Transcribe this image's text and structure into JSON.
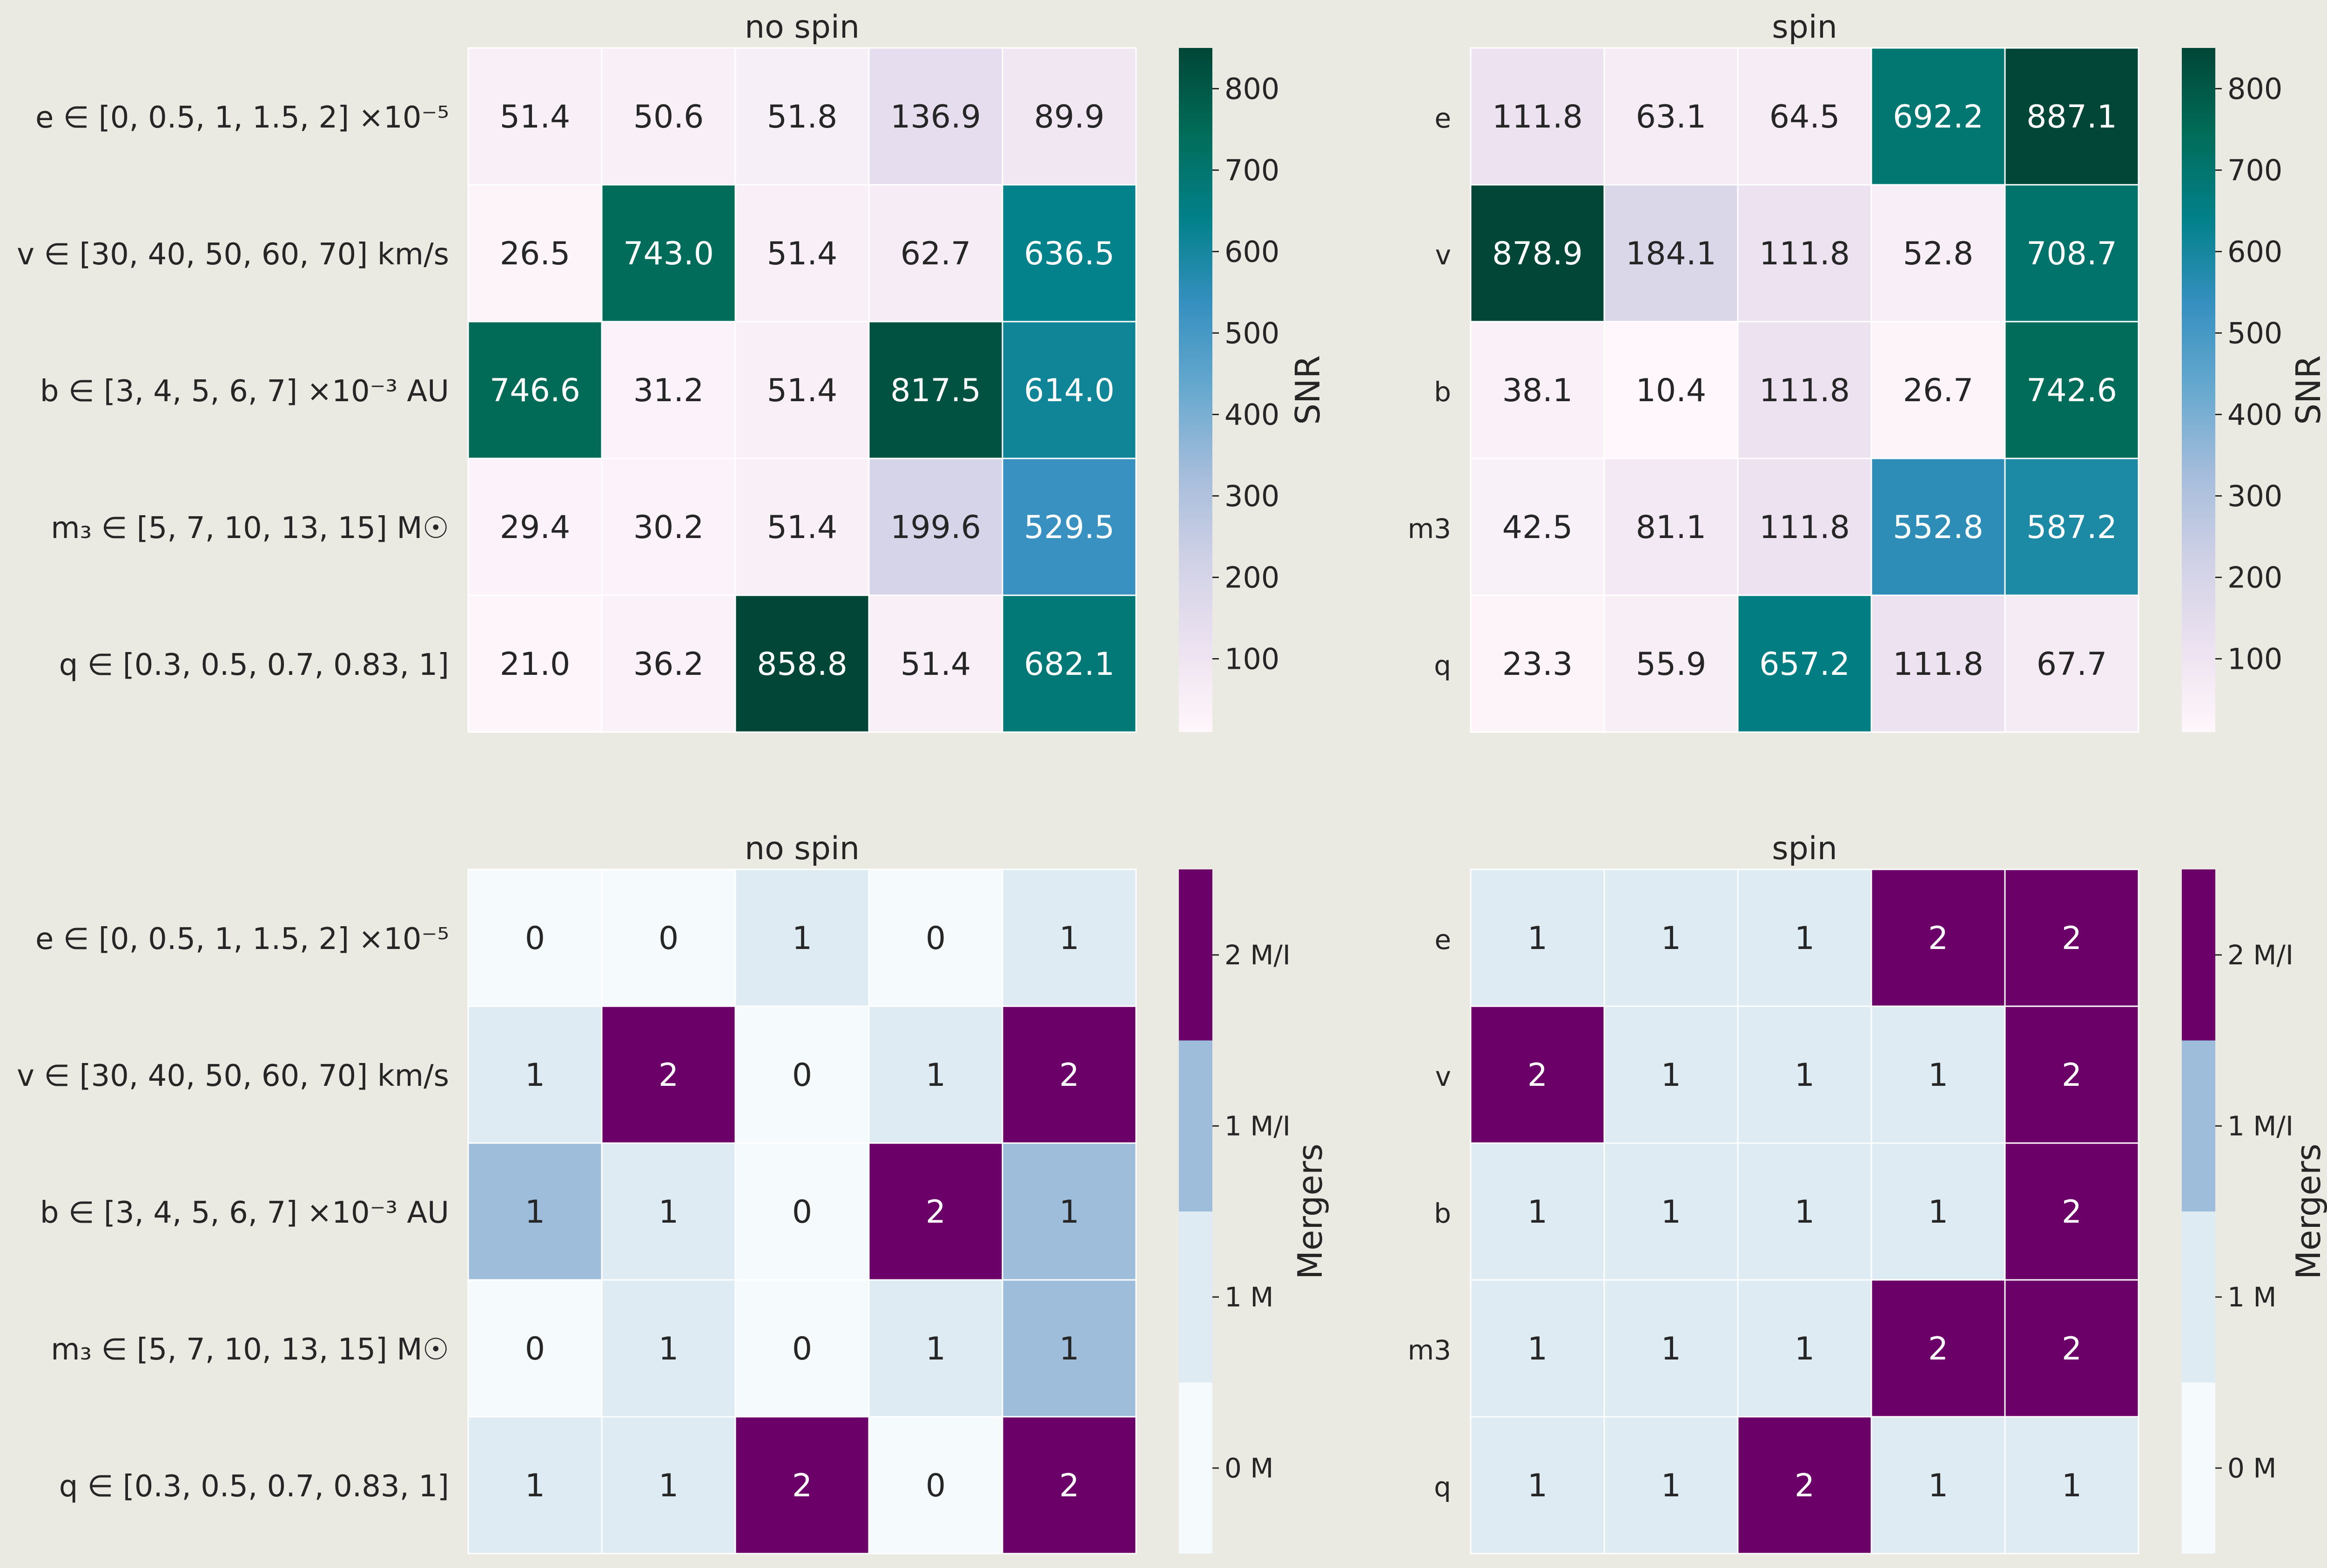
{
  "chart_data": [
    {
      "type": "heatmap",
      "title": "no spin",
      "row_labels": [
        "e ∈  [0, 0.5, 1, 1.5, 2] ×10⁻⁵",
        "v ∈  [30, 40, 50, 60, 70] km/s",
        "b ∈  [3, 4, 5, 6, 7] ×10⁻³ AU",
        "m₃ ∈  [5, 7, 10, 13, 15] M☉",
        "q ∈  [0.3, 0.5, 0.7, 0.83, 1]"
      ],
      "values": [
        [
          51.4,
          50.6,
          51.8,
          136.9,
          89.9
        ],
        [
          26.5,
          743.0,
          51.4,
          62.7,
          636.5
        ],
        [
          746.6,
          31.2,
          51.4,
          817.5,
          614.0
        ],
        [
          29.4,
          30.2,
          51.4,
          199.6,
          529.5
        ],
        [
          21.0,
          36.2,
          858.8,
          51.4,
          682.1
        ]
      ],
      "cell_labels": [
        [
          "51.4",
          "50.6",
          "51.8",
          "136.9",
          "89.9"
        ],
        [
          "26.5",
          "743.0",
          "51.4",
          "62.7",
          "636.5"
        ],
        [
          "746.6",
          "31.2",
          "51.4",
          "817.5",
          "614.0"
        ],
        [
          "29.4",
          "30.2",
          "51.4",
          "199.6",
          "529.5"
        ],
        [
          "21.0",
          "36.2",
          "858.8",
          "51.4",
          "682.1"
        ]
      ],
      "colormap": "PuBuGn",
      "colorbar": {
        "label": "SNR",
        "range": [
          10,
          850
        ],
        "ticks": [
          100,
          200,
          300,
          400,
          500,
          600,
          700,
          800
        ],
        "tick_labels": [
          "100",
          "200",
          "300",
          "400",
          "500",
          "600",
          "700",
          "800"
        ],
        "colors": [
          "#fff7fb",
          "#ece2f0",
          "#d0d1e6",
          "#a6bddb",
          "#67a9cf",
          "#3690c0",
          "#02818a",
          "#016c59",
          "#014636"
        ]
      }
    },
    {
      "type": "heatmap",
      "title": "spin",
      "row_labels": [
        "e",
        "v",
        "b",
        "m3",
        "q"
      ],
      "values": [
        [
          111.8,
          63.1,
          64.5,
          692.2,
          887.1
        ],
        [
          878.9,
          184.1,
          111.8,
          52.8,
          708.7
        ],
        [
          38.1,
          10.4,
          111.8,
          26.7,
          742.6
        ],
        [
          42.5,
          81.1,
          111.8,
          552.8,
          587.2
        ],
        [
          23.3,
          55.9,
          657.2,
          111.8,
          67.7
        ]
      ],
      "cell_labels": [
        [
          "111.8",
          "63.1",
          "64.5",
          "692.2",
          "887.1"
        ],
        [
          "878.9",
          "184.1",
          "111.8",
          "52.8",
          "708.7"
        ],
        [
          "38.1",
          "10.4",
          "111.8",
          "26.7",
          "742.6"
        ],
        [
          "42.5",
          "81.1",
          "111.8",
          "552.8",
          "587.2"
        ],
        [
          "23.3",
          "55.9",
          "657.2",
          "111.8",
          "67.7"
        ]
      ],
      "colormap": "PuBuGn",
      "colorbar": {
        "label": "SNR",
        "range": [
          10,
          850
        ],
        "ticks": [
          100,
          200,
          300,
          400,
          500,
          600,
          700,
          800
        ],
        "tick_labels": [
          "100",
          "200",
          "300",
          "400",
          "500",
          "600",
          "700",
          "800"
        ],
        "colors": [
          "#fff7fb",
          "#ece2f0",
          "#d0d1e6",
          "#a6bddb",
          "#67a9cf",
          "#3690c0",
          "#02818a",
          "#016c59",
          "#014636"
        ]
      }
    },
    {
      "type": "heatmap",
      "title": "no spin",
      "row_labels": [
        "e ∈  [0, 0.5, 1, 1.5, 2] ×10⁻⁵",
        "v ∈  [30, 40, 50, 60, 70] km/s",
        "b ∈  [3, 4, 5, 6, 7] ×10⁻³ AU",
        "m₃ ∈  [5, 7, 10, 13, 15] M☉",
        "q ∈  [0.3, 0.5, 0.7, 0.83, 1]"
      ],
      "values": [
        [
          0,
          0,
          1,
          0,
          1
        ],
        [
          1,
          2,
          0,
          1,
          2
        ],
        [
          1,
          1,
          0,
          2,
          1
        ],
        [
          0,
          1,
          0,
          1,
          1
        ],
        [
          1,
          1,
          2,
          0,
          2
        ]
      ],
      "cell_categories": [
        [
          0,
          0,
          1,
          0,
          1
        ],
        [
          1,
          3,
          0,
          1,
          3
        ],
        [
          2,
          1,
          0,
          3,
          2
        ],
        [
          0,
          1,
          0,
          1,
          2
        ],
        [
          1,
          1,
          3,
          0,
          3
        ]
      ],
      "cell_labels": [
        [
          "0",
          "0",
          "1",
          "0",
          "1"
        ],
        [
          "1",
          "2",
          "0",
          "1",
          "2"
        ],
        [
          "1",
          "1",
          "0",
          "2",
          "1"
        ],
        [
          "0",
          "1",
          "0",
          "1",
          "1"
        ],
        [
          "1",
          "1",
          "2",
          "0",
          "2"
        ]
      ],
      "colorbar": {
        "label": "Mergers",
        "categories": [
          "0 M",
          "1 M",
          "1 M/I",
          "2 M/I"
        ],
        "colors": [
          "#f5fbfc",
          "#deebf3",
          "#9ebddb",
          "#6a0068"
        ]
      }
    },
    {
      "type": "heatmap",
      "title": "spin",
      "row_labels": [
        "e",
        "v",
        "b",
        "m3",
        "q"
      ],
      "values": [
        [
          1,
          1,
          1,
          2,
          2
        ],
        [
          2,
          1,
          1,
          1,
          2
        ],
        [
          1,
          1,
          1,
          1,
          2
        ],
        [
          1,
          1,
          1,
          2,
          2
        ],
        [
          1,
          1,
          2,
          1,
          1
        ]
      ],
      "cell_categories": [
        [
          1,
          1,
          1,
          3,
          3
        ],
        [
          3,
          1,
          1,
          1,
          3
        ],
        [
          1,
          1,
          1,
          1,
          3
        ],
        [
          1,
          1,
          1,
          3,
          3
        ],
        [
          1,
          1,
          3,
          1,
          1
        ]
      ],
      "cell_labels": [
        [
          "1",
          "1",
          "1",
          "2",
          "2"
        ],
        [
          "2",
          "1",
          "1",
          "1",
          "2"
        ],
        [
          "1",
          "1",
          "1",
          "1",
          "2"
        ],
        [
          "1",
          "1",
          "1",
          "2",
          "2"
        ],
        [
          "1",
          "1",
          "2",
          "1",
          "1"
        ]
      ],
      "colorbar": {
        "label": "Mergers",
        "categories": [
          "0 M",
          "1 M",
          "1 M/I",
          "2 M/I"
        ],
        "colors": [
          "#f5fbfc",
          "#deebf3",
          "#9ebddb",
          "#6a0068"
        ]
      }
    }
  ]
}
